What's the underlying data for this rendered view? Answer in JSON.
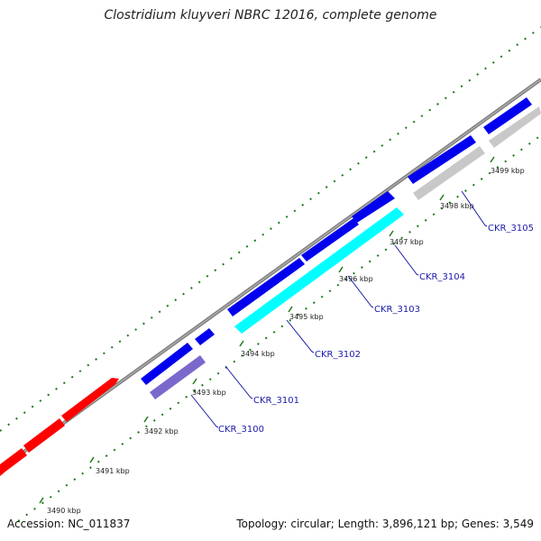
{
  "header": {
    "title": "Clostridium kluyveri NBRC 12016, complete genome"
  },
  "footer": {
    "accession": "Accession: NC_011837",
    "summary": "Topology: circular; Length: 3,896,121 bp; Genes: 3,549"
  },
  "colors": {
    "backbone": "#808080",
    "forward_gene": "#0000ee",
    "reverse_red": "#ff0000",
    "reverse_cyan": "#00ffff",
    "reverse_purple": "#7b68cc",
    "reverse_gray": "#c8c8c8",
    "tick": "#1a7a1a",
    "label": "#1a1aaa"
  },
  "ticks": [
    {
      "label": "3490 kbp"
    },
    {
      "label": "3491 kbp"
    },
    {
      "label": "3492 kbp"
    },
    {
      "label": "3493 kbp"
    },
    {
      "label": "3494 kbp"
    },
    {
      "label": "3495 kbp"
    },
    {
      "label": "3496 kbp"
    },
    {
      "label": "3497 kbp"
    },
    {
      "label": "3498 kbp"
    },
    {
      "label": "3499 kbp"
    }
  ],
  "gene_labels": [
    {
      "label": "CKR_3100"
    },
    {
      "label": "CKR_3101"
    },
    {
      "label": "CKR_3102"
    },
    {
      "label": "CKR_3103"
    },
    {
      "label": "CKR_3104"
    },
    {
      "label": "CKR_3105"
    }
  ]
}
